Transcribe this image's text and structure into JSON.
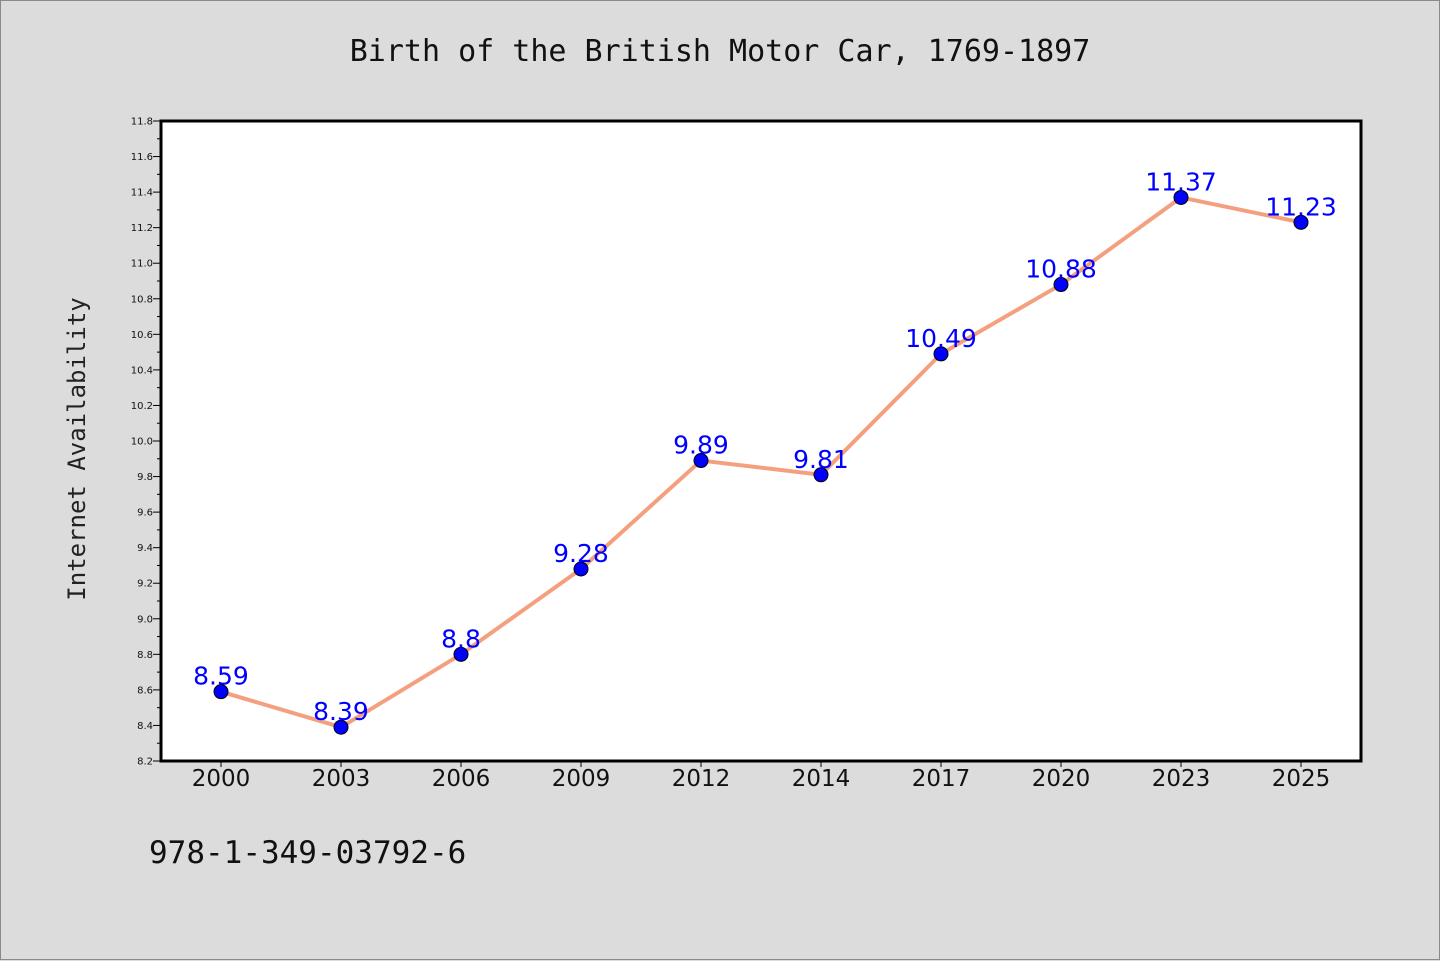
{
  "chart_data": {
    "type": "line",
    "title": "Birth of the British Motor Car, 1769-1897",
    "xlabel": "",
    "ylabel": "Internet Availability",
    "categories": [
      "2000",
      "2003",
      "2006",
      "2009",
      "2012",
      "2014",
      "2017",
      "2020",
      "2023",
      "2025"
    ],
    "series": [
      {
        "values": [
          8.59,
          8.39,
          8.8,
          9.28,
          9.89,
          9.81,
          10.49,
          10.88,
          11.37,
          11.23
        ],
        "labels": [
          "8.59",
          "8.39",
          "8.8",
          "9.28",
          "9.89",
          "9.81",
          "10.49",
          "10.88",
          "11.37",
          "11.23"
        ]
      }
    ],
    "ylim": [
      8.2,
      11.8
    ],
    "yticks": [
      "8.2",
      "8.4",
      "8.6",
      "8.8",
      "9.0",
      "9.2",
      "9.4",
      "9.6",
      "9.8",
      "10.0",
      "10.2",
      "10.4",
      "10.6",
      "10.8",
      "11.0",
      "11.2",
      "11.4",
      "11.6",
      "11.8"
    ],
    "grid": false,
    "legend": "none",
    "colors": {
      "line": "#f4a07f",
      "marker": "#0000ff",
      "label": "#0000ff",
      "background": "#dcdcdc",
      "plot_area": "#ffffff"
    }
  },
  "caption": "978-1-349-03792-6"
}
